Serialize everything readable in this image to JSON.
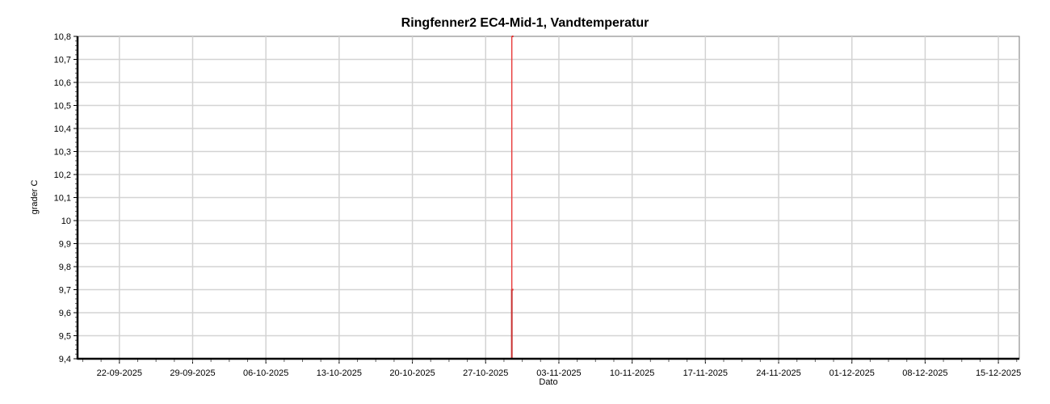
{
  "chart_data": {
    "type": "line",
    "title": "Ringfenner2 EC4-Mid-1, Vandtemperatur",
    "xlabel": "Dato",
    "ylabel": "grader C",
    "xlim": [
      "2025-09-18",
      "2025-12-17"
    ],
    "ylim": [
      9.4,
      10.8
    ],
    "x_ticks": [
      "22-09-2025",
      "29-09-2025",
      "06-10-2025",
      "13-10-2025",
      "20-10-2025",
      "27-10-2025",
      "03-11-2025",
      "10-11-2025",
      "17-11-2025",
      "24-11-2025",
      "01-12-2025",
      "08-12-2025",
      "15-12-2025"
    ],
    "y_ticks": [
      "9,4",
      "9,5",
      "9,6",
      "9,7",
      "9,8",
      "9,9",
      "10",
      "10,1",
      "10,2",
      "10,3",
      "10,4",
      "10,5",
      "10,6",
      "10,7",
      "10,8"
    ],
    "grid": true,
    "series": [
      {
        "color": "#e03030",
        "points": [
          {
            "x": "2025-10-29T12:00",
            "y": 9.4
          },
          {
            "x": "2025-10-29T12:00",
            "y": 9.7
          },
          {
            "x": "2025-10-29T12:00",
            "y": 10.8
          }
        ]
      }
    ]
  }
}
